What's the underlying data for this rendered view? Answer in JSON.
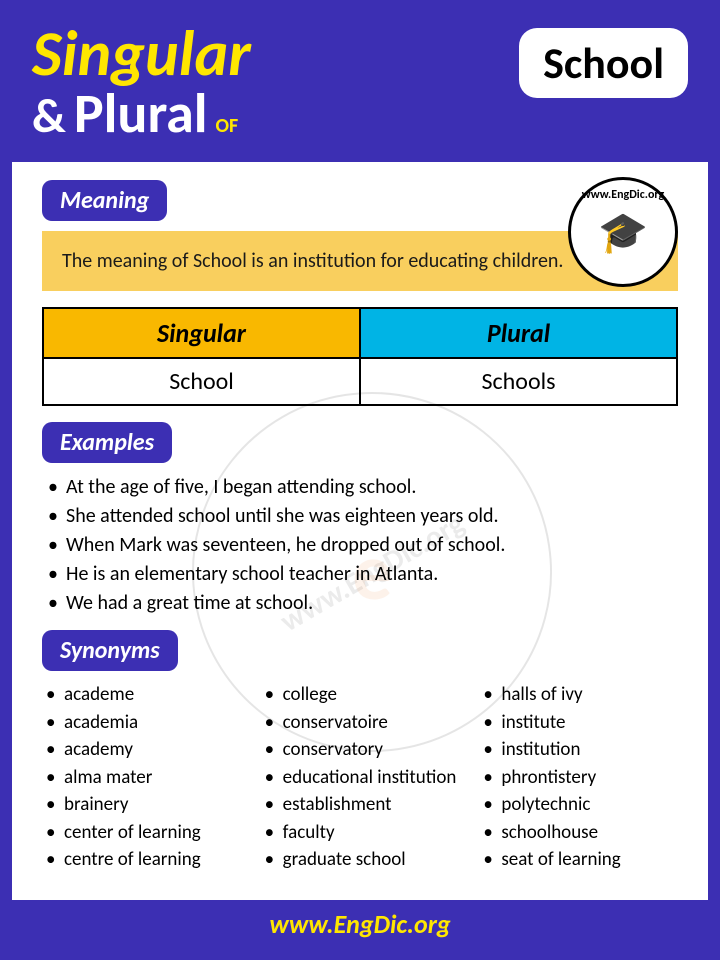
{
  "brand": {
    "url": "www.EngDic.org",
    "short": "EngDic"
  },
  "header": {
    "singular_label": "Singular",
    "amp": "&",
    "plural_label": "Plural",
    "of_label": "OF",
    "word": "School"
  },
  "sections": {
    "meaning_label": "Meaning",
    "examples_label": "Examples",
    "synonyms_label": "Synonyms"
  },
  "meaning_text": "The meaning of School is an institution for educating children.",
  "table": {
    "singular_header": "Singular",
    "plural_header": "Plural",
    "singular_value": "School",
    "plural_value": "Schools"
  },
  "examples": [
    "At the age of five, I began attending school.",
    "She attended school until she was eighteen years old.",
    "When Mark was seventeen, he dropped out of school.",
    "He is an elementary school teacher in Atlanta.",
    "We had a great time at school."
  ],
  "synonyms": {
    "col1": [
      "academe",
      "academia",
      "academy",
      "alma mater",
      "brainery",
      "center of learning",
      "centre of learning"
    ],
    "col2": [
      "college",
      "conservatoire",
      "conservatory",
      "educational institution",
      "establishment",
      "faculty",
      "graduate school"
    ],
    "col3": [
      "halls of ivy",
      "institute",
      "institution",
      "phrontistery",
      "polytechnic",
      "schoolhouse",
      "seat of learning"
    ]
  },
  "footer_url": "www.EngDic.org",
  "colors": {
    "primary": "#3c2fb3",
    "accent_yellow": "#ffe600",
    "meaning_bg": "#f9cf5e",
    "singular_bg": "#f9b800",
    "plural_bg": "#00b4e5"
  }
}
